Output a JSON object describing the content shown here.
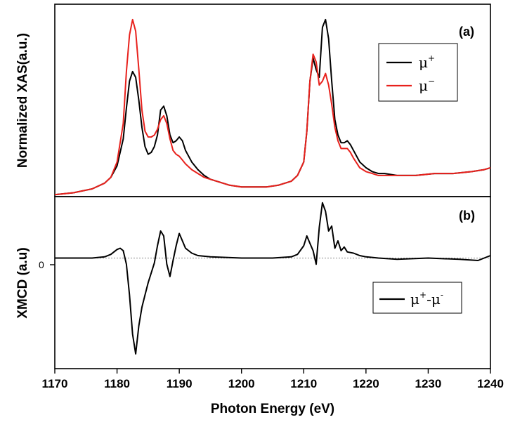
{
  "chart_data": [
    {
      "id": "a",
      "type": "line",
      "panel_label": "(a)",
      "ylabel": "Normalized XAS(a.u.)",
      "xlim": [
        1170,
        1240
      ],
      "ylim": [
        0,
        1.0
      ],
      "show_y_ticks": false,
      "grid": false,
      "legend_position": "top-right",
      "series": [
        {
          "name_base": "μ",
          "name_sup": "+",
          "color": "#000000",
          "x": [
            1170,
            1173,
            1176,
            1178,
            1179,
            1180,
            1181,
            1181.5,
            1182,
            1182.5,
            1183,
            1183.5,
            1184,
            1184.5,
            1185,
            1185.5,
            1186,
            1186.5,
            1187,
            1187.5,
            1188,
            1188.5,
            1189,
            1189.5,
            1190,
            1190.5,
            1191,
            1192,
            1193,
            1194,
            1195,
            1196,
            1198,
            1200,
            1202,
            1204,
            1206,
            1207,
            1208,
            1209,
            1210,
            1210.5,
            1211,
            1211.5,
            1212,
            1212.5,
            1213,
            1213.5,
            1214,
            1214.5,
            1215,
            1215.5,
            1216,
            1216.5,
            1217,
            1217.5,
            1218,
            1219,
            1220,
            1221,
            1222,
            1223,
            1225,
            1228,
            1231,
            1234,
            1237,
            1239,
            1240
          ],
          "y": [
            0.01,
            0.02,
            0.04,
            0.07,
            0.1,
            0.16,
            0.3,
            0.46,
            0.6,
            0.65,
            0.62,
            0.5,
            0.36,
            0.26,
            0.22,
            0.23,
            0.26,
            0.32,
            0.45,
            0.47,
            0.42,
            0.32,
            0.28,
            0.29,
            0.31,
            0.29,
            0.24,
            0.18,
            0.14,
            0.11,
            0.09,
            0.08,
            0.06,
            0.05,
            0.05,
            0.05,
            0.06,
            0.07,
            0.08,
            0.11,
            0.18,
            0.34,
            0.6,
            0.72,
            0.66,
            0.62,
            0.88,
            0.92,
            0.82,
            0.6,
            0.4,
            0.32,
            0.28,
            0.28,
            0.29,
            0.27,
            0.24,
            0.18,
            0.15,
            0.13,
            0.12,
            0.12,
            0.11,
            0.11,
            0.12,
            0.12,
            0.13,
            0.14,
            0.15
          ]
        },
        {
          "name_base": "μ",
          "name_sup": "−",
          "color": "#e8211c",
          "x": [
            1170,
            1173,
            1176,
            1178,
            1179,
            1180,
            1181,
            1181.5,
            1182,
            1182.5,
            1183,
            1183.5,
            1184,
            1184.5,
            1185,
            1185.5,
            1186,
            1186.5,
            1187,
            1187.5,
            1188,
            1188.5,
            1189,
            1189.5,
            1190,
            1190.5,
            1191,
            1192,
            1193,
            1194,
            1195,
            1196,
            1198,
            1200,
            1202,
            1204,
            1206,
            1207,
            1208,
            1209,
            1210,
            1210.5,
            1211,
            1211.5,
            1212,
            1212.5,
            1213,
            1213.5,
            1214,
            1214.5,
            1215,
            1215.5,
            1216,
            1216.5,
            1217,
            1217.5,
            1218,
            1219,
            1220,
            1221,
            1222,
            1223,
            1225,
            1228,
            1231,
            1234,
            1237,
            1239,
            1240
          ],
          "y": [
            0.01,
            0.02,
            0.04,
            0.07,
            0.1,
            0.18,
            0.38,
            0.65,
            0.84,
            0.92,
            0.86,
            0.66,
            0.45,
            0.34,
            0.31,
            0.31,
            0.32,
            0.35,
            0.4,
            0.42,
            0.38,
            0.3,
            0.24,
            0.22,
            0.21,
            0.19,
            0.17,
            0.14,
            0.12,
            0.1,
            0.09,
            0.08,
            0.06,
            0.05,
            0.05,
            0.05,
            0.06,
            0.07,
            0.08,
            0.11,
            0.18,
            0.34,
            0.6,
            0.74,
            0.7,
            0.58,
            0.6,
            0.64,
            0.58,
            0.48,
            0.36,
            0.29,
            0.25,
            0.25,
            0.25,
            0.23,
            0.2,
            0.15,
            0.13,
            0.12,
            0.11,
            0.11,
            0.11,
            0.11,
            0.12,
            0.12,
            0.13,
            0.14,
            0.15
          ]
        }
      ]
    },
    {
      "id": "b",
      "type": "line",
      "panel_label": "(b)",
      "ylabel": "XMCD (a.u)",
      "xlabel": "Photon Energy (eV)",
      "xlim": [
        1170,
        1240
      ],
      "ylim": [
        -0.9,
        0.5
      ],
      "x_ticks": [
        1170,
        1180,
        1190,
        1200,
        1210,
        1220,
        1230,
        1240
      ],
      "y_ticks": [
        0
      ],
      "y_tick_label": "0",
      "zero_line": true,
      "grid": false,
      "legend_position": "bottom-right",
      "series": [
        {
          "name": "μ+-μ-",
          "name_base1": "μ",
          "name_sup1": "+",
          "name_mid": "-μ",
          "name_sup2": "-",
          "color": "#000000",
          "x": [
            1170,
            1176,
            1178,
            1179,
            1180,
            1180.5,
            1181,
            1181.5,
            1182,
            1182.5,
            1183,
            1183.5,
            1184,
            1184.5,
            1185,
            1185.5,
            1186,
            1186.5,
            1187,
            1187.5,
            1188,
            1188.5,
            1189,
            1189.5,
            1190,
            1190.5,
            1191,
            1192,
            1193,
            1195,
            1200,
            1205,
            1208,
            1209,
            1210,
            1210.5,
            1211,
            1211.5,
            1212,
            1212.5,
            1213,
            1213.5,
            1214,
            1214.5,
            1215,
            1215.5,
            1216,
            1216.5,
            1217,
            1218,
            1219,
            1220,
            1222,
            1225,
            1230,
            1235,
            1238,
            1239,
            1240
          ],
          "y": [
            0,
            0,
            0.01,
            0.03,
            0.07,
            0.08,
            0.06,
            -0.05,
            -0.3,
            -0.62,
            -0.78,
            -0.55,
            -0.4,
            -0.3,
            -0.2,
            -0.12,
            -0.04,
            0.1,
            0.22,
            0.18,
            -0.05,
            -0.15,
            -0.02,
            0.1,
            0.2,
            0.14,
            0.08,
            0.04,
            0.02,
            0.01,
            0,
            0,
            0.01,
            0.03,
            0.1,
            0.18,
            0.12,
            0.06,
            -0.05,
            0.25,
            0.45,
            0.38,
            0.22,
            0.26,
            0.08,
            0.14,
            0.06,
            0.09,
            0.05,
            0.04,
            0.02,
            0.01,
            0,
            -0.01,
            0,
            -0.01,
            -0.02,
            0,
            0.02
          ]
        }
      ]
    }
  ]
}
